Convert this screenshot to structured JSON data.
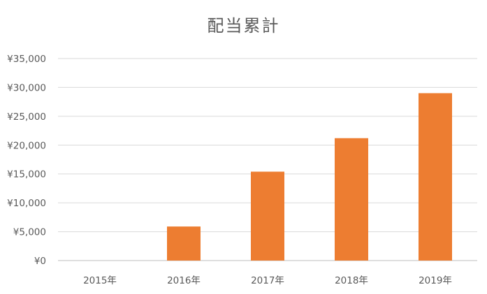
{
  "chart_data": {
    "type": "bar",
    "title": "配当累計",
    "xlabel": "",
    "ylabel": "",
    "categories": [
      "2015年",
      "2016年",
      "2017年",
      "2018年",
      "2019年"
    ],
    "values": [
      0,
      5900,
      15400,
      21200,
      29000
    ],
    "ylim": [
      0,
      35000
    ],
    "yticks": [
      0,
      5000,
      10000,
      15000,
      20000,
      25000,
      30000,
      35000
    ],
    "ytick_labels": [
      "¥0",
      "¥5,000",
      "¥10,000",
      "¥15,000",
      "¥20,000",
      "¥25,000",
      "¥30,000",
      "¥35,000"
    ],
    "grid": true,
    "legend": "none",
    "bar_color": "#ED7D31",
    "grid_color": "#D9D9D9",
    "text_color": "#595959"
  }
}
